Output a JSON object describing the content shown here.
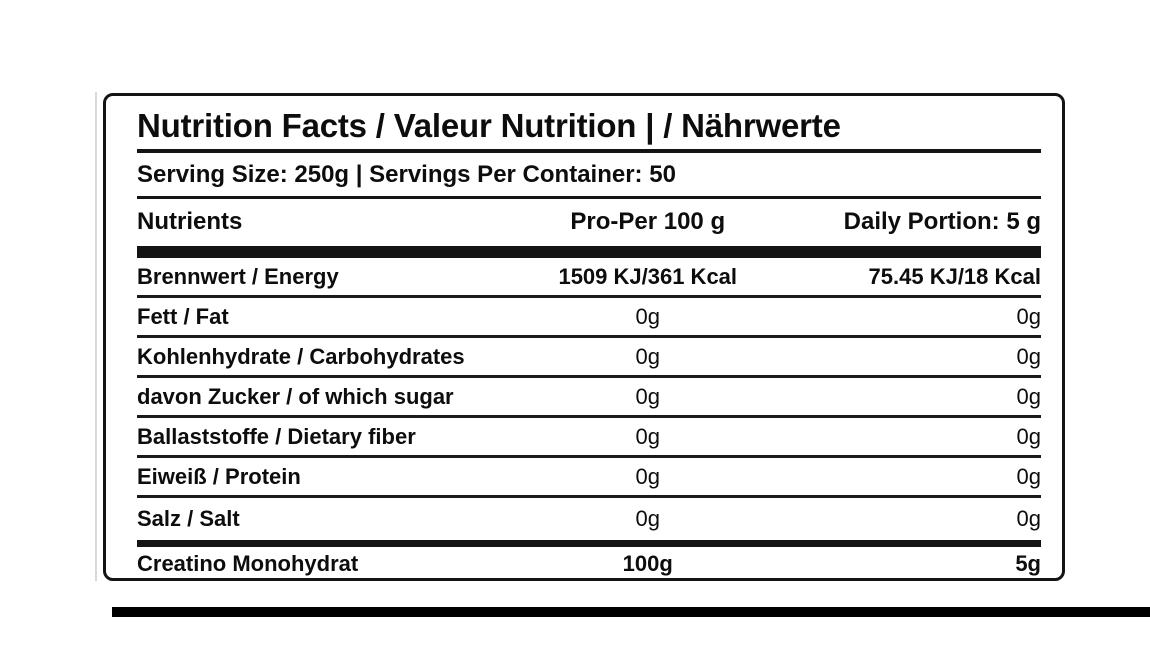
{
  "label": {
    "title": "Nutrition Facts / Valeur Nutrition | / Nährwerte",
    "serving_info": "Serving Size: 250g | Servings Per Container: 50",
    "columns": [
      "Nutrients",
      "Pro-Per 100 g",
      "Daily Portion: 5 g"
    ],
    "rows": [
      {
        "name": "Brennwert / Energy",
        "per_100g": "1509 KJ/361 Kcal",
        "daily_portion": "75.45 KJ/18 Kcal"
      },
      {
        "name": "Fett / Fat",
        "per_100g": "0g",
        "daily_portion": "0g"
      },
      {
        "name": "Kohlenhydrate / Carbohydrates",
        "per_100g": "0g",
        "daily_portion": "0g"
      },
      {
        "name": "davon Zucker / of which sugar",
        "per_100g": "0g",
        "daily_portion": "0g"
      },
      {
        "name": "Ballaststoffe / Dietary fiber",
        "per_100g": "0g",
        "daily_portion": "0g"
      },
      {
        "name": "Eiweiß / Protein",
        "per_100g": "0g",
        "daily_portion": "0g"
      },
      {
        "name": "Salz / Salt",
        "per_100g": "0g",
        "daily_portion": "0g"
      },
      {
        "name": "Creatino Monohydrat",
        "per_100g": "100g",
        "daily_portion": "5g"
      }
    ],
    "colors": {
      "text": "#0d0d0d",
      "rule": "#141414",
      "background": "#ffffff"
    }
  }
}
